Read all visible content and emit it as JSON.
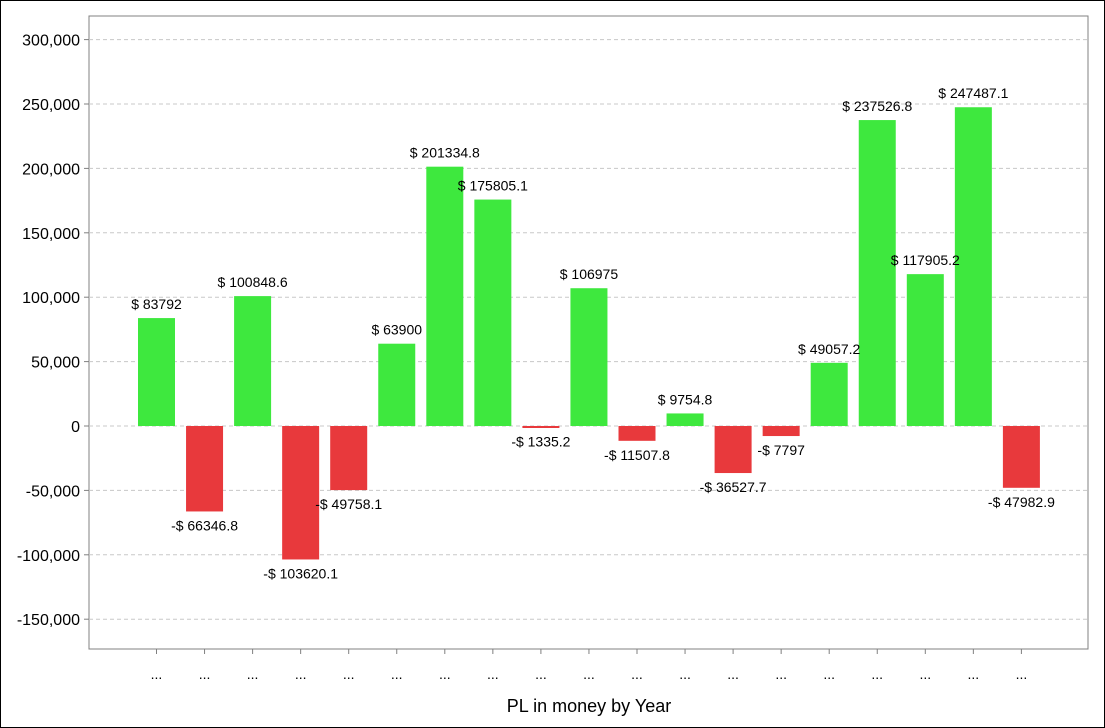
{
  "chart_data": {
    "type": "bar",
    "title": "",
    "xlabel": "PL in money by Year",
    "ylabel": "",
    "ylim": [
      -175000,
      300000
    ],
    "yticks": [
      300000,
      250000,
      200000,
      150000,
      100000,
      50000,
      0,
      -50000,
      -100000,
      -150000
    ],
    "ytick_labels": [
      "300,000",
      "250,000",
      "200,000",
      "150,000",
      "100,000",
      "50,000",
      "0",
      "-50,000",
      "-100,000",
      "-150,000"
    ],
    "grid": true,
    "categories": [
      "...",
      "...",
      "...",
      "...",
      "...",
      "...",
      "...",
      "...",
      "...",
      "...",
      "...",
      "...",
      "...",
      "...",
      "...",
      "...",
      "...",
      "...",
      "..."
    ],
    "values": [
      83792,
      -66346.8,
      100848.6,
      -103620.1,
      -49758.1,
      63900,
      201334.8,
      175805.1,
      -1335.2,
      106975,
      -11507.8,
      9754.8,
      -36527.7,
      -7797,
      49057.2,
      237526.8,
      117905.2,
      247487.1,
      -47982.9
    ],
    "data_labels": [
      "$ 83792",
      "-$ 66346.8",
      "$ 100848.6",
      "-$ 103620.1",
      "-$ 49758.1",
      "$ 63900",
      "$ 201334.8",
      "$ 175805.1",
      "-$ 1335.2",
      "$ 106975",
      "-$ 11507.8",
      "$ 9754.8",
      "-$ 36527.7",
      "-$ 7797",
      "$ 49057.2",
      "$ 237526.8",
      "$ 117905.2",
      "$ 247487.1",
      "-$ 47982.9"
    ],
    "colors": {
      "positive": "#3ee83e",
      "negative": "#e8393c",
      "grid": "#c8c8c8",
      "axis": "#808080"
    }
  }
}
